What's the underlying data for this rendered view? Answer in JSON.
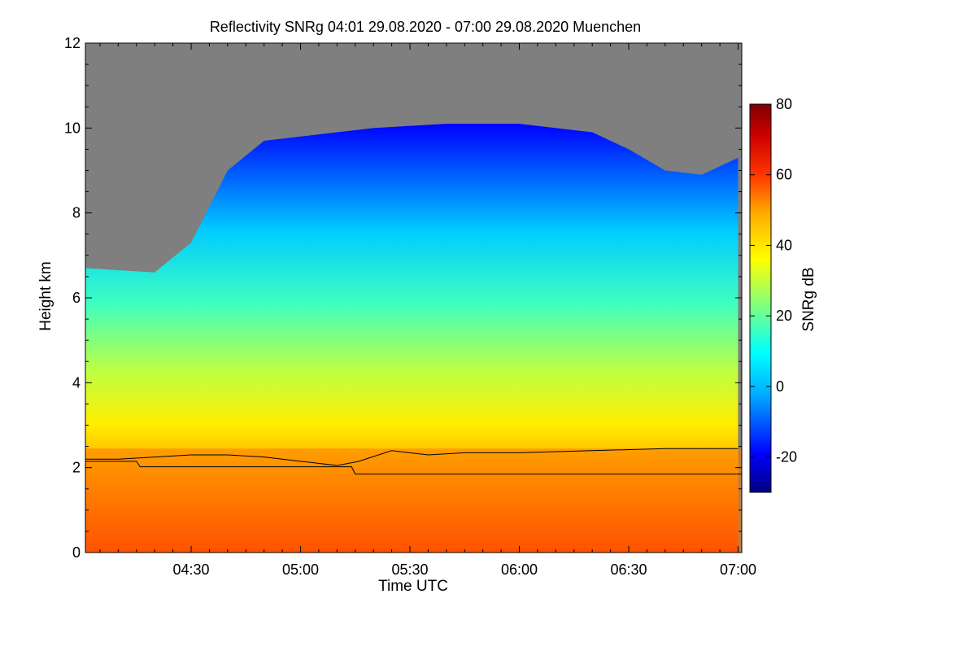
{
  "chart_data": {
    "type": "heatmap",
    "title": "Reflectivity SNRg",
    "time_range": "04:01 29.08.2020 - 07:00 29.08.2020",
    "location": "Muenchen",
    "xlabel": "Time UTC",
    "ylabel": "Height km",
    "x_range_utc": [
      "04:01",
      "07:00"
    ],
    "x_ticks": [
      "04:30",
      "05:00",
      "05:30",
      "06:00",
      "06:30",
      "07:00"
    ],
    "x_tick_minutes": [
      270,
      300,
      330,
      360,
      390,
      420
    ],
    "x_start_minute": 241,
    "x_end_minute": 421,
    "ylim": [
      0,
      12
    ],
    "y_ticks": [
      0,
      2,
      4,
      6,
      8,
      10,
      12
    ],
    "colorbar": {
      "label": "SNRg dB",
      "range": [
        -30,
        80
      ],
      "ticks": [
        -20,
        0,
        20,
        40,
        60,
        80
      ],
      "colormap": [
        "#00007f",
        "#0000ff",
        "#00aaff",
        "#00ffff",
        "#80ff80",
        "#ffff00",
        "#ffaa00",
        "#ff3300",
        "#cc0000",
        "#7f0000"
      ]
    },
    "no_signal_color": "#7f7f7f",
    "series": [
      {
        "name": "cloud/signal top height (km)",
        "minutes": [
          241,
          260,
          270,
          280,
          290,
          300,
          320,
          340,
          360,
          380,
          390,
          400,
          410,
          420
        ],
        "values": [
          6.7,
          6.6,
          7.3,
          9.0,
          9.7,
          9.8,
          10.0,
          10.1,
          10.1,
          9.9,
          9.5,
          9.0,
          8.9,
          9.3
        ]
      },
      {
        "name": "upper boundary line (km)",
        "minutes": [
          241,
          250,
          260,
          270,
          280,
          290,
          300,
          310,
          316,
          325,
          335,
          345,
          360,
          380,
          400,
          420
        ],
        "values": [
          2.2,
          2.2,
          2.25,
          2.3,
          2.3,
          2.25,
          2.15,
          2.05,
          2.15,
          2.4,
          2.3,
          2.35,
          2.35,
          2.4,
          2.45,
          2.45
        ]
      },
      {
        "name": "lower boundary line (km)",
        "minutes": [
          241,
          255,
          256,
          314,
          315,
          421
        ],
        "values": [
          2.15,
          2.15,
          2.02,
          2.02,
          1.85,
          1.85
        ]
      }
    ]
  }
}
